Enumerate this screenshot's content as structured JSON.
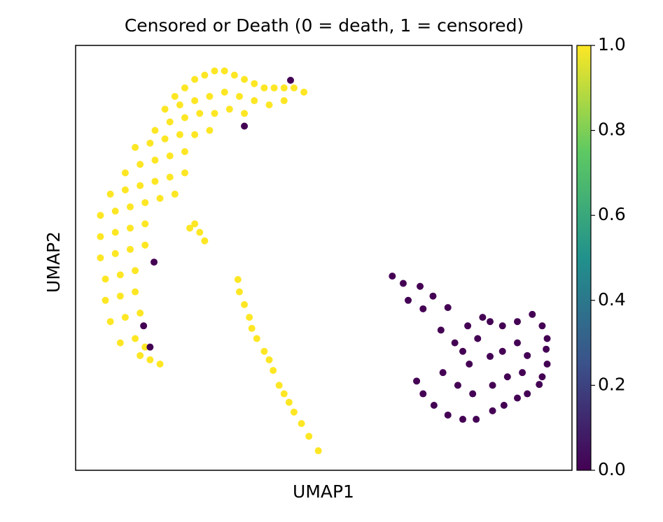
{
  "chart_data": {
    "type": "scatter",
    "title": "Censored or Death (0 = death, 1 = censored)",
    "x_label": "UMAP1",
    "y_label": "UMAP2",
    "xlim": [
      0,
      100
    ],
    "ylim": [
      0,
      100
    ],
    "colormap": "viridis",
    "clim": [
      0,
      1
    ],
    "colorbar_ticks": [
      {
        "value": 0,
        "label": "0.0"
      },
      {
        "value": 0.2,
        "label": "0.2"
      },
      {
        "value": 0.4,
        "label": "0.4"
      },
      {
        "value": 0.6,
        "label": "0.6"
      },
      {
        "value": 0.8,
        "label": "0.8"
      },
      {
        "value": 1,
        "label": "1.0"
      }
    ],
    "points": [
      {
        "x": 20,
        "y": 88,
        "value": 1
      },
      {
        "x": 22,
        "y": 90,
        "value": 1
      },
      {
        "x": 24,
        "y": 92,
        "value": 1
      },
      {
        "x": 26,
        "y": 93,
        "value": 1
      },
      {
        "x": 28,
        "y": 94,
        "value": 1
      },
      {
        "x": 30,
        "y": 94,
        "value": 1
      },
      {
        "x": 32,
        "y": 93,
        "value": 1
      },
      {
        "x": 34,
        "y": 92,
        "value": 1
      },
      {
        "x": 36,
        "y": 91,
        "value": 1
      },
      {
        "x": 38,
        "y": 90,
        "value": 1
      },
      {
        "x": 40,
        "y": 90,
        "value": 1
      },
      {
        "x": 42,
        "y": 90,
        "value": 1
      },
      {
        "x": 44,
        "y": 90,
        "value": 1
      },
      {
        "x": 46,
        "y": 89,
        "value": 1
      },
      {
        "x": 18,
        "y": 85,
        "value": 1
      },
      {
        "x": 21,
        "y": 86,
        "value": 1
      },
      {
        "x": 24,
        "y": 87,
        "value": 1
      },
      {
        "x": 27,
        "y": 88,
        "value": 1
      },
      {
        "x": 30,
        "y": 89,
        "value": 1
      },
      {
        "x": 33,
        "y": 88,
        "value": 1
      },
      {
        "x": 36,
        "y": 87,
        "value": 1
      },
      {
        "x": 39,
        "y": 86,
        "value": 1
      },
      {
        "x": 42,
        "y": 87,
        "value": 1
      },
      {
        "x": 16,
        "y": 80,
        "value": 1
      },
      {
        "x": 19,
        "y": 82,
        "value": 1
      },
      {
        "x": 22,
        "y": 83,
        "value": 1
      },
      {
        "x": 25,
        "y": 84,
        "value": 1
      },
      {
        "x": 28,
        "y": 84,
        "value": 1
      },
      {
        "x": 31,
        "y": 85,
        "value": 1
      },
      {
        "x": 34,
        "y": 84,
        "value": 1
      },
      {
        "x": 12,
        "y": 76,
        "value": 1
      },
      {
        "x": 15,
        "y": 77,
        "value": 1
      },
      {
        "x": 18,
        "y": 78,
        "value": 1
      },
      {
        "x": 21,
        "y": 79,
        "value": 1
      },
      {
        "x": 24,
        "y": 79,
        "value": 1
      },
      {
        "x": 27,
        "y": 80,
        "value": 1
      },
      {
        "x": 10,
        "y": 70,
        "value": 1
      },
      {
        "x": 13,
        "y": 72,
        "value": 1
      },
      {
        "x": 16,
        "y": 73,
        "value": 1
      },
      {
        "x": 19,
        "y": 74,
        "value": 1
      },
      {
        "x": 22,
        "y": 75,
        "value": 1
      },
      {
        "x": 7,
        "y": 65,
        "value": 1
      },
      {
        "x": 10,
        "y": 66,
        "value": 1
      },
      {
        "x": 13,
        "y": 67,
        "value": 1
      },
      {
        "x": 16,
        "y": 68,
        "value": 1
      },
      {
        "x": 19,
        "y": 69,
        "value": 1
      },
      {
        "x": 22,
        "y": 70,
        "value": 1
      },
      {
        "x": 5,
        "y": 60,
        "value": 1
      },
      {
        "x": 8,
        "y": 61,
        "value": 1
      },
      {
        "x": 11,
        "y": 62,
        "value": 1
      },
      {
        "x": 14,
        "y": 63,
        "value": 1
      },
      {
        "x": 17,
        "y": 64,
        "value": 1
      },
      {
        "x": 20,
        "y": 65,
        "value": 1
      },
      {
        "x": 5,
        "y": 55,
        "value": 1
      },
      {
        "x": 8,
        "y": 56,
        "value": 1
      },
      {
        "x": 11,
        "y": 57,
        "value": 1
      },
      {
        "x": 14,
        "y": 58,
        "value": 1
      },
      {
        "x": 5,
        "y": 50,
        "value": 1
      },
      {
        "x": 8,
        "y": 51,
        "value": 1
      },
      {
        "x": 11,
        "y": 52,
        "value": 1
      },
      {
        "x": 14,
        "y": 53,
        "value": 1
      },
      {
        "x": 6,
        "y": 45,
        "value": 1
      },
      {
        "x": 9,
        "y": 46,
        "value": 1
      },
      {
        "x": 12,
        "y": 47,
        "value": 1
      },
      {
        "x": 6,
        "y": 40,
        "value": 1
      },
      {
        "x": 9,
        "y": 41,
        "value": 1
      },
      {
        "x": 12,
        "y": 42,
        "value": 1
      },
      {
        "x": 7,
        "y": 35,
        "value": 1
      },
      {
        "x": 10,
        "y": 36,
        "value": 1
      },
      {
        "x": 13,
        "y": 37,
        "value": 1
      },
      {
        "x": 9,
        "y": 30,
        "value": 1
      },
      {
        "x": 12,
        "y": 31,
        "value": 1
      },
      {
        "x": 14,
        "y": 29,
        "value": 1
      },
      {
        "x": 13,
        "y": 27,
        "value": 1
      },
      {
        "x": 15,
        "y": 26,
        "value": 1
      },
      {
        "x": 17,
        "y": 25,
        "value": 1
      },
      {
        "x": 24,
        "y": 58,
        "value": 1
      },
      {
        "x": 25,
        "y": 56,
        "value": 1
      },
      {
        "x": 26,
        "y": 54,
        "value": 1
      },
      {
        "x": 23,
        "y": 57,
        "value": 1
      },
      {
        "x": 32.7,
        "y": 44.9,
        "value": 1
      },
      {
        "x": 33,
        "y": 42,
        "value": 1
      },
      {
        "x": 34,
        "y": 39,
        "value": 1
      },
      {
        "x": 35,
        "y": 36,
        "value": 1
      },
      {
        "x": 35.5,
        "y": 33.4,
        "value": 1
      },
      {
        "x": 36.5,
        "y": 31,
        "value": 1
      },
      {
        "x": 38,
        "y": 28,
        "value": 1
      },
      {
        "x": 39,
        "y": 26,
        "value": 1
      },
      {
        "x": 39.8,
        "y": 23.5,
        "value": 1
      },
      {
        "x": 41,
        "y": 20,
        "value": 1
      },
      {
        "x": 42,
        "y": 18,
        "value": 1
      },
      {
        "x": 43,
        "y": 16,
        "value": 1
      },
      {
        "x": 44,
        "y": 13.7,
        "value": 1
      },
      {
        "x": 45.5,
        "y": 11,
        "value": 1
      },
      {
        "x": 47,
        "y": 8,
        "value": 1
      },
      {
        "x": 48.9,
        "y": 4.6,
        "value": 1
      },
      {
        "x": 34,
        "y": 81,
        "value": 0
      },
      {
        "x": 15.8,
        "y": 49,
        "value": 0
      },
      {
        "x": 13.7,
        "y": 34,
        "value": 0
      },
      {
        "x": 15,
        "y": 29,
        "value": 0
      },
      {
        "x": 43.3,
        "y": 91.8,
        "value": 0
      },
      {
        "x": 63.8,
        "y": 45.7,
        "value": 0
      },
      {
        "x": 66,
        "y": 44,
        "value": 0
      },
      {
        "x": 69.4,
        "y": 43.3,
        "value": 0
      },
      {
        "x": 72,
        "y": 41,
        "value": 0
      },
      {
        "x": 75,
        "y": 38.3,
        "value": 0
      },
      {
        "x": 73.6,
        "y": 33,
        "value": 0
      },
      {
        "x": 76.4,
        "y": 30,
        "value": 0
      },
      {
        "x": 79,
        "y": 34,
        "value": 0
      },
      {
        "x": 82,
        "y": 36,
        "value": 0
      },
      {
        "x": 83.5,
        "y": 35,
        "value": 0
      },
      {
        "x": 86,
        "y": 34,
        "value": 0
      },
      {
        "x": 89,
        "y": 35,
        "value": 0
      },
      {
        "x": 92,
        "y": 36.7,
        "value": 0
      },
      {
        "x": 94,
        "y": 34,
        "value": 0
      },
      {
        "x": 95,
        "y": 31,
        "value": 0
      },
      {
        "x": 94.8,
        "y": 28.5,
        "value": 0
      },
      {
        "x": 95,
        "y": 25,
        "value": 0
      },
      {
        "x": 94,
        "y": 22,
        "value": 0
      },
      {
        "x": 93.4,
        "y": 20.2,
        "value": 0
      },
      {
        "x": 91,
        "y": 18,
        "value": 0
      },
      {
        "x": 89,
        "y": 17,
        "value": 0
      },
      {
        "x": 86.3,
        "y": 15.3,
        "value": 0
      },
      {
        "x": 84,
        "y": 14,
        "value": 0
      },
      {
        "x": 80.7,
        "y": 12,
        "value": 0
      },
      {
        "x": 78,
        "y": 12,
        "value": 0
      },
      {
        "x": 75,
        "y": 13,
        "value": 0
      },
      {
        "x": 72.2,
        "y": 15.3,
        "value": 0
      },
      {
        "x": 70,
        "y": 18,
        "value": 0
      },
      {
        "x": 68.7,
        "y": 21,
        "value": 0
      },
      {
        "x": 79.3,
        "y": 25,
        "value": 0
      },
      {
        "x": 83.5,
        "y": 26.8,
        "value": 0
      },
      {
        "x": 89,
        "y": 30,
        "value": 0
      },
      {
        "x": 86,
        "y": 28,
        "value": 0
      },
      {
        "x": 91,
        "y": 27,
        "value": 0
      },
      {
        "x": 90,
        "y": 23,
        "value": 0
      },
      {
        "x": 87,
        "y": 22,
        "value": 0
      },
      {
        "x": 84,
        "y": 20,
        "value": 0
      },
      {
        "x": 80,
        "y": 18,
        "value": 0
      },
      {
        "x": 77,
        "y": 20,
        "value": 0
      },
      {
        "x": 74,
        "y": 23,
        "value": 0
      },
      {
        "x": 70,
        "y": 38,
        "value": 0
      },
      {
        "x": 67,
        "y": 40,
        "value": 0
      },
      {
        "x": 78,
        "y": 28,
        "value": 0
      },
      {
        "x": 81,
        "y": 31,
        "value": 0
      }
    ]
  }
}
